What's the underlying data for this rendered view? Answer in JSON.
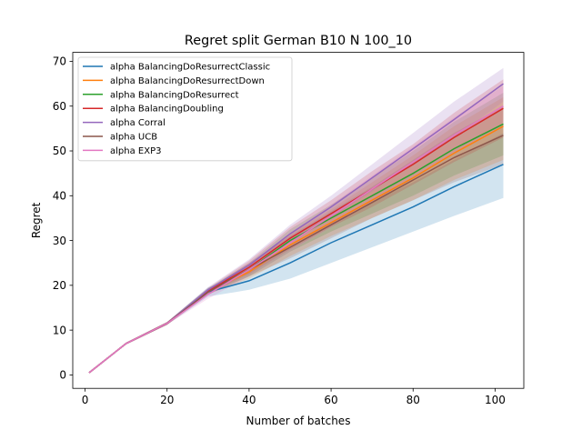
{
  "chart_data": {
    "type": "line",
    "title": "Regret split German B10 N 100_10",
    "xlabel": "Number of batches",
    "ylabel": "Regret",
    "xlim": [
      -3,
      107
    ],
    "ylim": [
      -3,
      72
    ],
    "xticks": [
      0,
      20,
      40,
      60,
      80,
      100
    ],
    "yticks": [
      0,
      10,
      20,
      30,
      40,
      50,
      60,
      70
    ],
    "legend_position": "upper-left",
    "x": [
      1,
      10,
      20,
      30,
      40,
      50,
      60,
      70,
      80,
      90,
      102
    ],
    "series": [
      {
        "name": "alpha BalancingDoResurrectClassic",
        "color": "#1f77b4",
        "values": [
          0.5,
          7.0,
          11.5,
          18.5,
          21.0,
          25.0,
          29.5,
          33.5,
          37.5,
          42.0,
          47.0
        ],
        "lower": [
          0.4,
          6.8,
          11.2,
          17.5,
          19.0,
          21.5,
          25.0,
          28.5,
          32.0,
          35.5,
          39.5
        ],
        "upper": [
          0.6,
          7.2,
          11.8,
          19.5,
          23.0,
          28.5,
          34.0,
          38.5,
          43.0,
          48.0,
          54.0
        ]
      },
      {
        "name": "alpha BalancingDoResurrectDown",
        "color": "#ff7f0e",
        "values": [
          0.5,
          7.0,
          11.5,
          18.6,
          23.0,
          29.0,
          34.0,
          39.0,
          44.0,
          49.5,
          55.5
        ],
        "lower": [
          0.4,
          6.8,
          11.2,
          18.0,
          21.5,
          26.5,
          31.0,
          35.0,
          39.0,
          43.5,
          48.0
        ],
        "upper": [
          0.6,
          7.2,
          11.8,
          19.2,
          24.5,
          31.5,
          37.0,
          43.0,
          49.0,
          55.5,
          62.0
        ]
      },
      {
        "name": "alpha BalancingDoResurrect",
        "color": "#2ca02c",
        "values": [
          0.5,
          7.0,
          11.5,
          18.7,
          23.5,
          30.0,
          35.0,
          40.0,
          45.0,
          50.5,
          56.0
        ],
        "lower": [
          0.4,
          6.8,
          11.2,
          18.1,
          22.0,
          27.5,
          32.0,
          36.0,
          40.0,
          44.5,
          49.0
        ],
        "upper": [
          0.6,
          7.2,
          11.8,
          19.3,
          25.0,
          32.5,
          38.0,
          44.0,
          50.0,
          56.5,
          63.0
        ]
      },
      {
        "name": "alpha BalancingDoubling",
        "color": "#d62728",
        "values": [
          0.5,
          7.0,
          11.5,
          18.8,
          24.0,
          30.5,
          36.0,
          41.5,
          47.0,
          53.0,
          59.5
        ],
        "lower": [
          0.4,
          6.8,
          11.2,
          18.2,
          22.5,
          28.0,
          33.0,
          37.5,
          42.5,
          47.5,
          53.0
        ],
        "upper": [
          0.6,
          7.2,
          11.8,
          19.4,
          25.5,
          33.0,
          39.0,
          45.5,
          51.5,
          58.5,
          66.0
        ]
      },
      {
        "name": "alpha Corral",
        "color": "#9467bd",
        "values": [
          0.5,
          7.0,
          11.5,
          19.0,
          24.5,
          31.5,
          37.5,
          44.0,
          50.5,
          57.0,
          65.0
        ],
        "lower": [
          0.4,
          6.8,
          11.2,
          18.4,
          23.2,
          29.5,
          35.0,
          41.0,
          47.0,
          53.0,
          61.0
        ],
        "upper": [
          0.6,
          7.2,
          11.8,
          19.6,
          25.8,
          33.5,
          40.0,
          47.0,
          54.0,
          61.0,
          68.5
        ]
      },
      {
        "name": "alpha UCB",
        "color": "#8c564b",
        "values": [
          0.5,
          7.0,
          11.5,
          18.5,
          23.5,
          28.5,
          33.5,
          38.5,
          43.5,
          48.5,
          53.5
        ],
        "lower": [
          0.4,
          6.8,
          11.2,
          17.9,
          22.0,
          26.0,
          30.5,
          35.0,
          39.0,
          43.0,
          47.0
        ],
        "upper": [
          0.6,
          7.2,
          11.8,
          19.1,
          25.0,
          31.0,
          36.5,
          42.0,
          48.0,
          54.0,
          60.0
        ]
      },
      {
        "name": "alpha EXP3",
        "color": "#e377c2",
        "values": [
          0.5,
          7.0,
          11.5,
          18.0,
          23.5,
          29.5,
          35.5,
          41.5,
          47.5,
          53.5,
          60.0
        ],
        "lower": [
          0.4,
          6.8,
          11.2,
          17.0,
          22.0,
          27.5,
          33.0,
          38.5,
          44.0,
          49.5,
          55.5
        ],
        "upper": [
          0.6,
          7.2,
          11.8,
          19.0,
          25.0,
          31.5,
          38.0,
          44.5,
          51.0,
          57.5,
          64.5
        ]
      }
    ]
  }
}
